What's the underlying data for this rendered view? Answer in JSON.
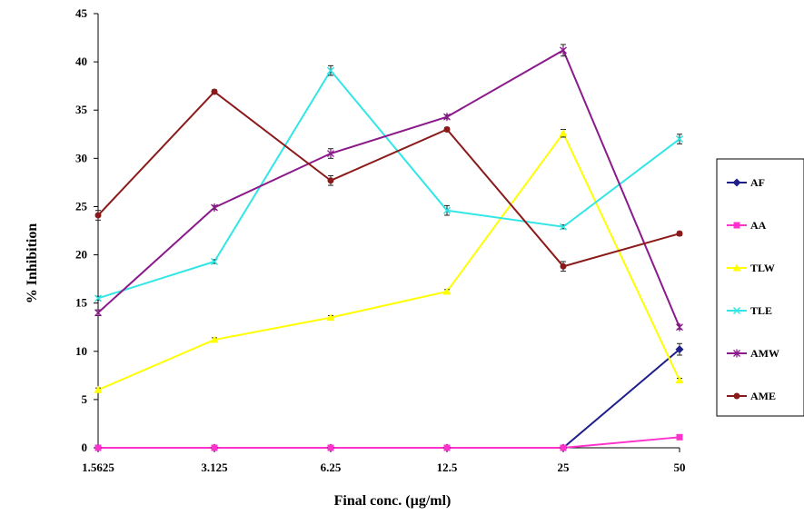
{
  "chart_data": {
    "type": "line",
    "title": "",
    "xlabel": "Final conc. (µg/ml)",
    "ylabel": "% Inhibition",
    "categories": [
      "1.5625",
      "3.125",
      "6.25",
      "12.5",
      "25",
      "50"
    ],
    "ylim": [
      0,
      45
    ],
    "yticks": [
      0,
      5,
      10,
      15,
      20,
      25,
      30,
      35,
      40,
      45
    ],
    "grid": false,
    "legend_position": "right",
    "series": [
      {
        "name": "AF",
        "color": "#1f1f8a",
        "marker": "diamond",
        "values": [
          0,
          0,
          0,
          0,
          0,
          10.2
        ],
        "errors": [
          0,
          0,
          0,
          0,
          0,
          0.6
        ]
      },
      {
        "name": "AA",
        "color": "#ff33cc",
        "marker": "square",
        "values": [
          0,
          0,
          0,
          0,
          0,
          1.1
        ],
        "errors": [
          0,
          0,
          0,
          0,
          0,
          0
        ]
      },
      {
        "name": "TLW",
        "color": "#ffff00",
        "marker": "triangle",
        "values": [
          6.0,
          11.2,
          13.5,
          16.2,
          32.6,
          7.0
        ],
        "errors": [
          0.2,
          0.2,
          0.2,
          0.2,
          0.4,
          0.2
        ]
      },
      {
        "name": "TLE",
        "color": "#33e6e6",
        "marker": "x",
        "values": [
          15.5,
          19.3,
          39.1,
          24.6,
          22.9,
          32.0
        ],
        "errors": [
          0.2,
          0.2,
          0.5,
          0.5,
          0.2,
          0.5
        ]
      },
      {
        "name": "AMW",
        "color": "#8b1a8b",
        "marker": "star",
        "values": [
          14.0,
          24.9,
          30.5,
          34.3,
          41.2,
          12.5
        ],
        "errors": [
          0.3,
          0.2,
          0.5,
          0.2,
          0.6,
          0.2
        ]
      },
      {
        "name": "AME",
        "color": "#8b1a1a",
        "marker": "circle",
        "values": [
          24.1,
          36.9,
          27.7,
          33.0,
          18.8,
          22.2
        ],
        "errors": [
          0.5,
          0.2,
          0.5,
          0.2,
          0.5,
          0.2
        ]
      }
    ]
  }
}
